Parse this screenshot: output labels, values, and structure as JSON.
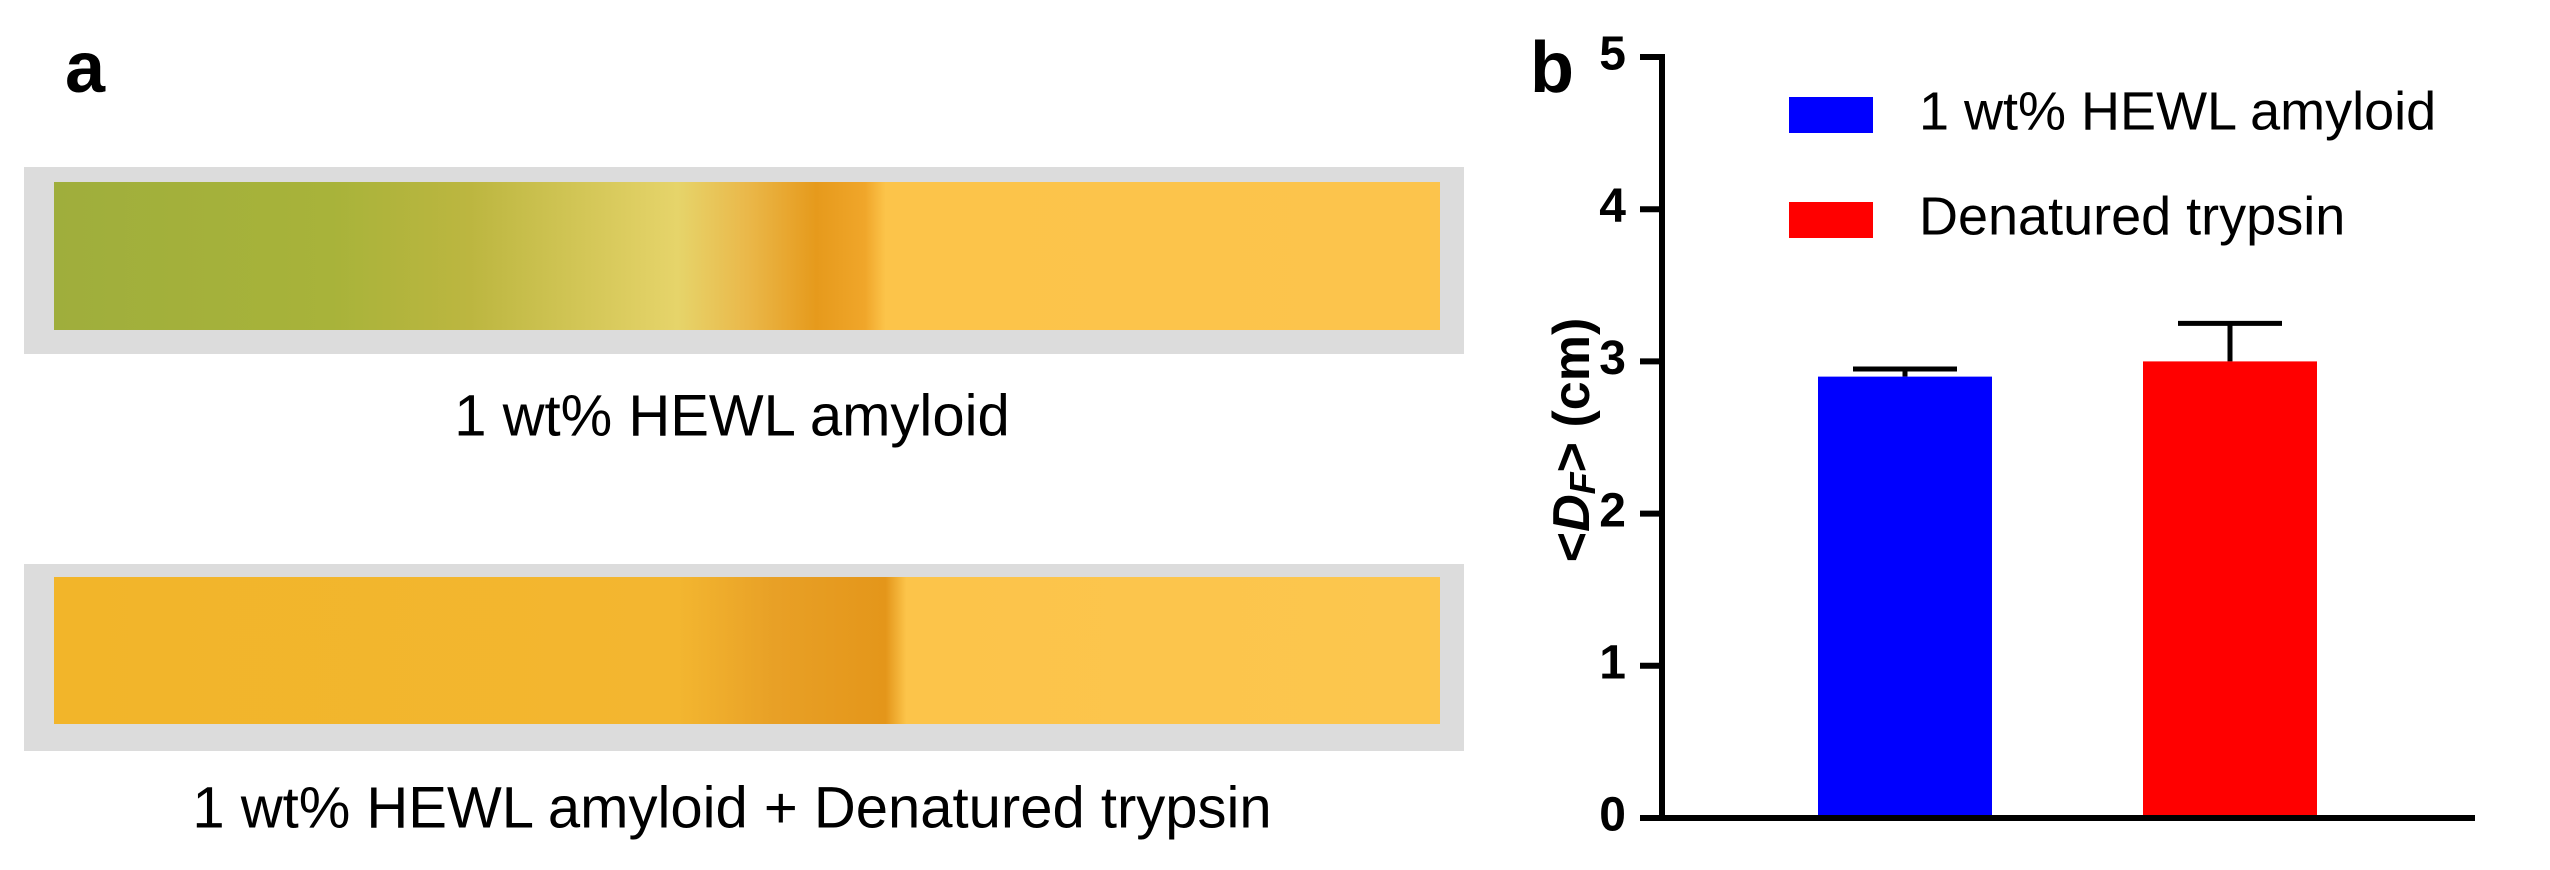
{
  "panel_a": {
    "label": "a",
    "captions": [
      "1 wt% HEWL amyloid",
      "1 wt% HEWL amyloid + Denatured trypsin"
    ]
  },
  "chart_data": {
    "type": "bar",
    "panel_label": "b",
    "ylabel": [
      "<",
      "D",
      "F",
      "> (cm)"
    ],
    "series": [
      {
        "name": "1 wt% HEWL amyloid",
        "color": "#0000ff",
        "values": [
          2.9
        ],
        "errors": [
          0.05
        ]
      },
      {
        "name": "Denatured trypsin",
        "color": "#ff0000",
        "values": [
          3.0
        ],
        "errors": [
          0.25
        ]
      }
    ],
    "ylim": [
      0,
      5
    ],
    "yticks": [
      0,
      1,
      2,
      3,
      4,
      5
    ],
    "legend": "upper right"
  }
}
